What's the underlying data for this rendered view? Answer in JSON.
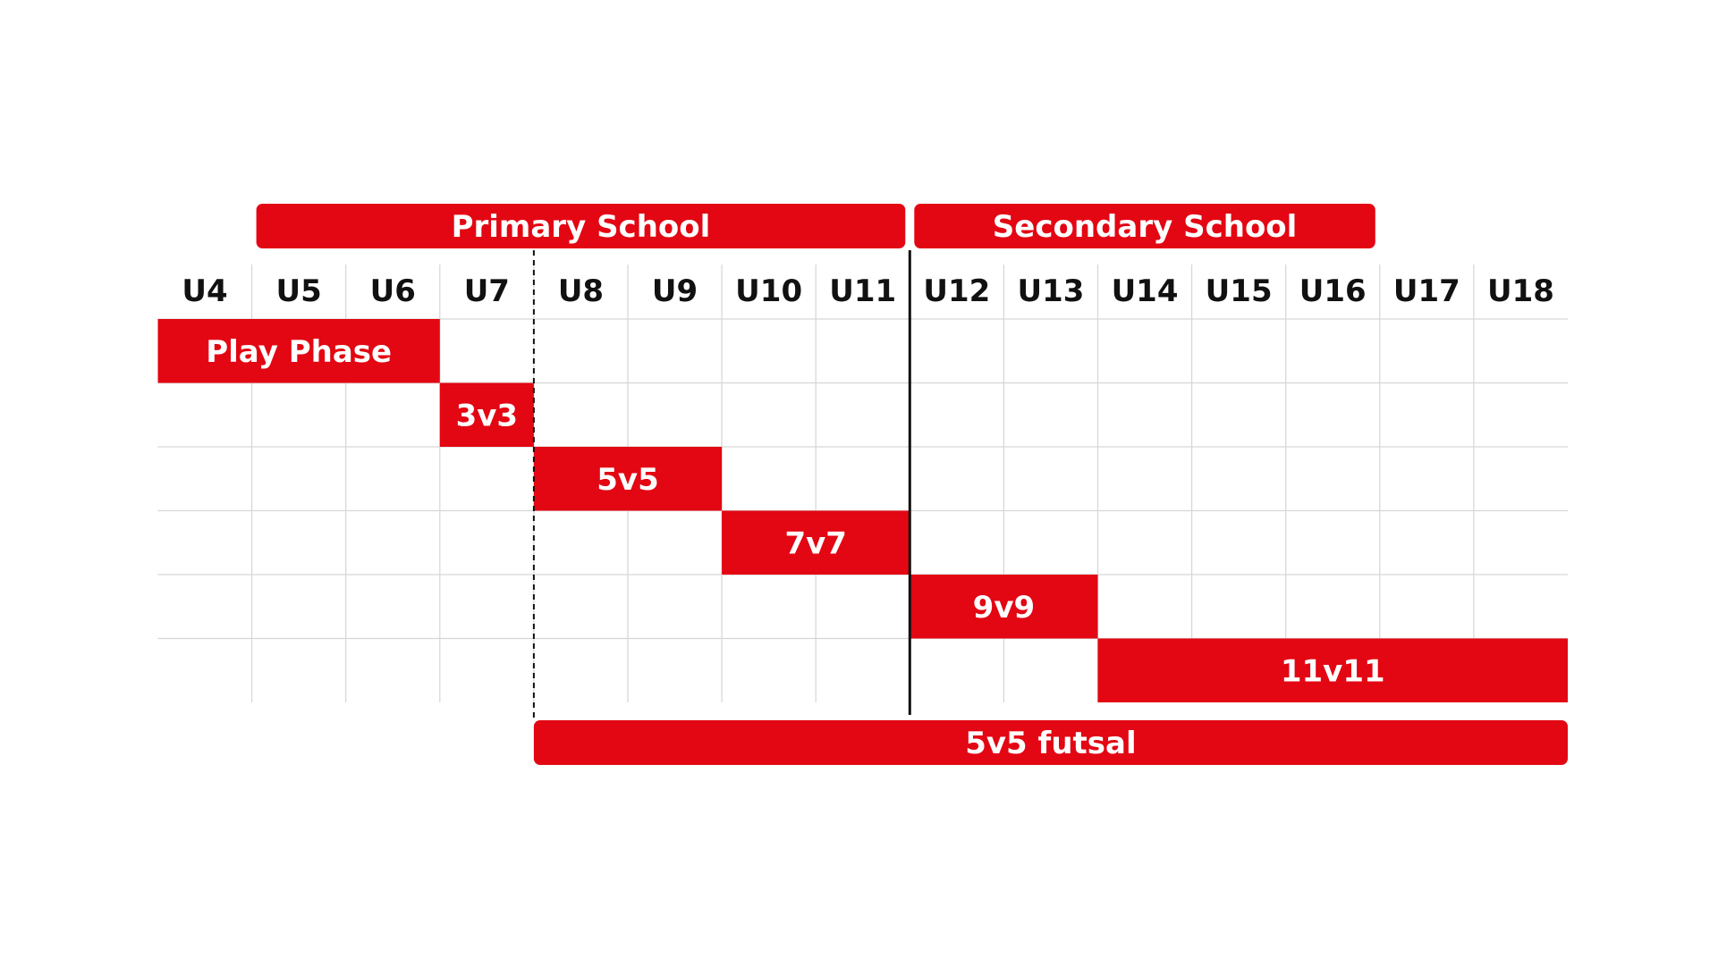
{
  "age_groups": [
    "U4",
    "U5",
    "U6",
    "U7",
    "U8",
    "U9",
    "U10",
    "U11",
    "U12",
    "U13",
    "U14",
    "U15",
    "U16",
    "U17",
    "U18"
  ],
  "school_bands": [
    {
      "label": "Primary School",
      "start": "U5",
      "end": "U11"
    },
    {
      "label": "Secondary School",
      "start": "U12",
      "end": "U16"
    }
  ],
  "formats": [
    {
      "label": "Play Phase",
      "start": "U4",
      "end": "U6"
    },
    {
      "label": "3v3",
      "start": "U7",
      "end": "U7"
    },
    {
      "label": "5v5",
      "start": "U8",
      "end": "U9"
    },
    {
      "label": "7v7",
      "start": "U10",
      "end": "U11"
    },
    {
      "label": "9v9",
      "start": "U12",
      "end": "U13"
    },
    {
      "label": "11v11",
      "start": "U14",
      "end": "U18"
    }
  ],
  "futsal": {
    "label": "5v5 futsal",
    "start": "U8",
    "end": "U18"
  },
  "colors": {
    "accent": "#e30613",
    "grid": "#d6d6d6",
    "text": "#111111",
    "on_accent": "#ffffff"
  }
}
